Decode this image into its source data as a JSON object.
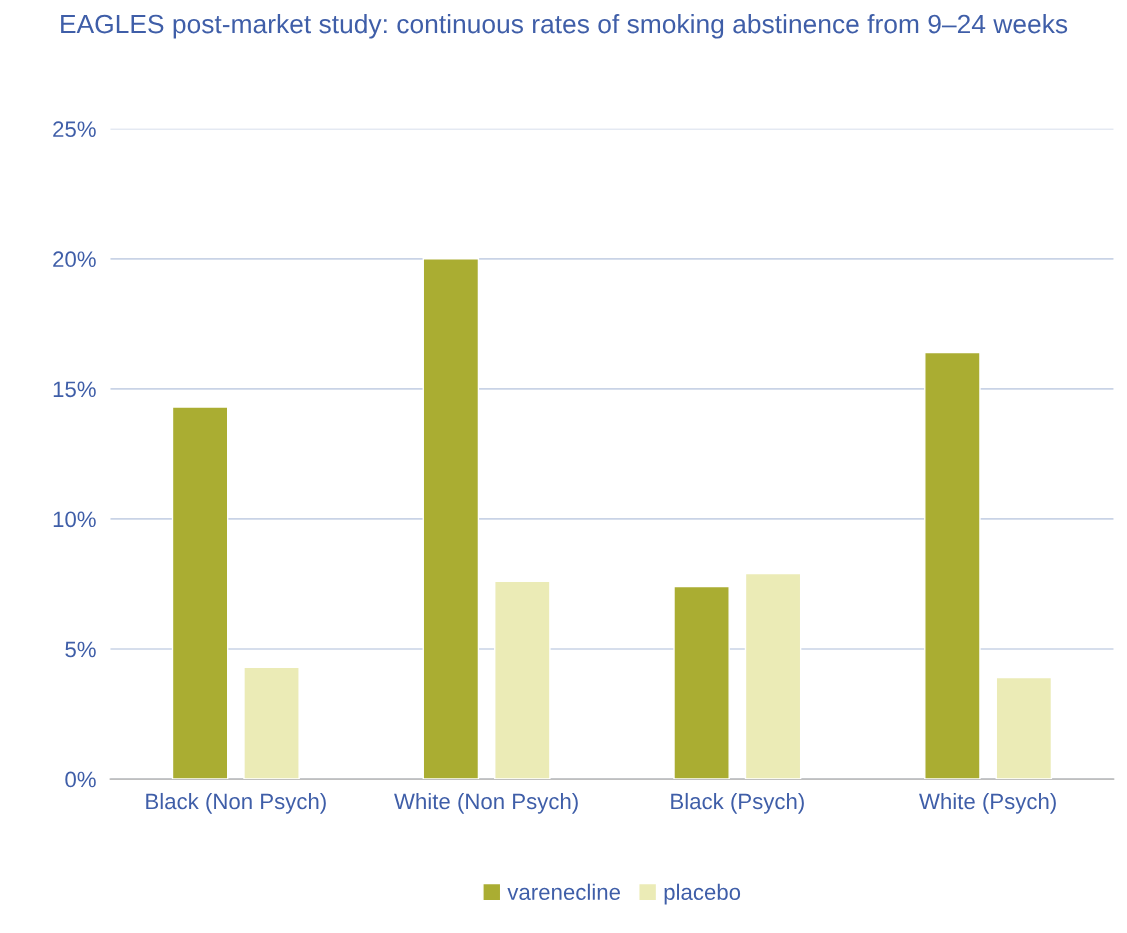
{
  "chart_data": {
    "type": "bar",
    "title": "EAGLES post-market study: continuous rates of smoking abstinence from 9–24 weeks",
    "categories": [
      "Black (Non Psych)",
      "White (Non Psych)",
      "Black (Psych)",
      "White (Psych)"
    ],
    "series": [
      {
        "name": "varenecline",
        "color": "#aaad32",
        "values": [
          14.3,
          20.0,
          7.4,
          16.4
        ]
      },
      {
        "name": "placebo",
        "color": "#ebebb6",
        "values": [
          4.3,
          7.6,
          7.9,
          3.9
        ]
      }
    ],
    "ylim": [
      0,
      25
    ],
    "yticks": [
      {
        "value": 0,
        "label": "0%"
      },
      {
        "value": 5,
        "label": "5%"
      },
      {
        "value": 10,
        "label": "10%"
      },
      {
        "value": 15,
        "label": "15%"
      },
      {
        "value": 20,
        "label": "20%"
      },
      {
        "value": 25,
        "label": "25%"
      }
    ],
    "grid": "y",
    "legend": "bottom"
  }
}
